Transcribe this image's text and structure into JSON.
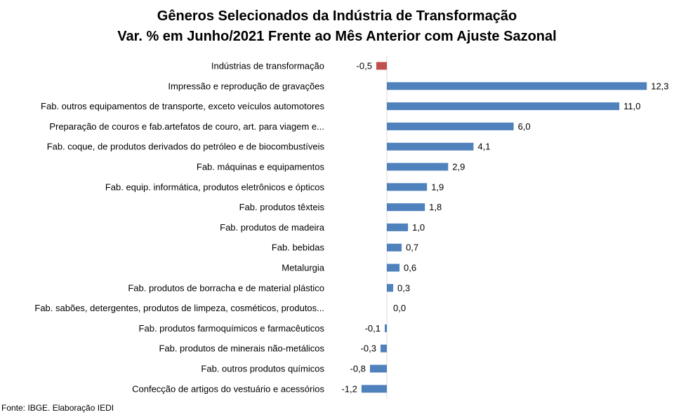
{
  "header": {
    "title_line1": "Gêneros Selecionados da Indústria de Transformação",
    "title_line2": "Var. % em Junho/2021 Frente ao Mês Anterior com Ajuste Sazonal"
  },
  "source": "Fonte: IBGE. Elaboração IEDI",
  "colors": {
    "positive": "#4F81BD",
    "highlight": "#C0504D"
  },
  "chart_data": {
    "type": "bar",
    "orientation": "horizontal",
    "categories": [
      "Indústrias de transformação",
      "Impressão e reprodução de gravações",
      "Fab. outros equipamentos de transporte, exceto veículos automotores",
      "Preparação de couros e fab.artefatos de couro, art. para viagem e...",
      "Fab. coque, de produtos derivados do petróleo e de biocombustíveis",
      "Fab. máquinas e equipamentos",
      "Fab. equip. informática, produtos eletrônicos e ópticos",
      "Fab. produtos têxteis",
      "Fab. produtos de madeira",
      "Fab. bebidas",
      "Metalurgia",
      "Fab. produtos de borracha e de material plástico",
      "Fab. sabões, detergentes, produtos de limpeza, cosméticos, produtos...",
      "Fab. produtos farmoquímicos e farmacêuticos",
      "Fab. produtos de minerais não-metálicos",
      "Fab. outros produtos químicos",
      "Confecção de artigos do vestuário e acessórios"
    ],
    "values": [
      -0.5,
      12.3,
      11.0,
      6.0,
      4.1,
      2.9,
      1.9,
      1.8,
      1.0,
      0.7,
      0.6,
      0.3,
      0.0,
      -0.1,
      -0.3,
      -0.8,
      -1.2
    ],
    "value_labels": [
      "-0,5",
      "12,3",
      "11,0",
      "6,0",
      "4,1",
      "2,9",
      "1,9",
      "1,8",
      "1,0",
      "0,7",
      "0,6",
      "0,3",
      "0,0",
      "-0,1",
      "-0,3",
      "-0,8",
      "-1,2"
    ],
    "highlight_index": 0,
    "xlim": [
      -1.2,
      12.3
    ],
    "grid": false,
    "legend": "none"
  }
}
